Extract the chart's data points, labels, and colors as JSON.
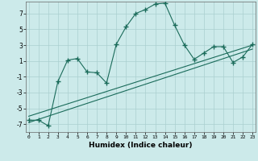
{
  "xlabel": "Humidex (Indice chaleur)",
  "bg_color": "#cceaea",
  "grid_color": "#aacfcf",
  "line_color": "#1a6b5a",
  "x_ticks": [
    0,
    1,
    2,
    3,
    4,
    5,
    6,
    7,
    8,
    9,
    10,
    11,
    12,
    13,
    14,
    15,
    16,
    17,
    18,
    19,
    20,
    21,
    22,
    23
  ],
  "y_ticks": [
    -7,
    -5,
    -3,
    -1,
    1,
    3,
    5,
    7
  ],
  "ylim": [
    -8.0,
    8.5
  ],
  "xlim": [
    -0.3,
    23.3
  ],
  "line1_x": [
    0,
    1,
    2,
    3,
    4,
    5,
    6,
    7,
    8,
    9,
    10,
    11,
    12,
    13,
    14,
    15,
    16,
    17,
    18,
    19,
    20,
    21,
    22,
    23
  ],
  "line1_y": [
    -6.5,
    -6.5,
    -7.2,
    -1.6,
    1.1,
    1.3,
    -0.4,
    -0.5,
    -1.8,
    3.1,
    5.3,
    7.0,
    7.5,
    8.2,
    8.3,
    5.5,
    3.0,
    1.2,
    2.0,
    2.8,
    2.8,
    0.8,
    1.5,
    3.1
  ],
  "line2_x": [
    0,
    23
  ],
  "line2_y": [
    -6.8,
    2.5
  ],
  "line3_x": [
    0,
    23
  ],
  "line3_y": [
    -6.0,
    3.0
  ]
}
